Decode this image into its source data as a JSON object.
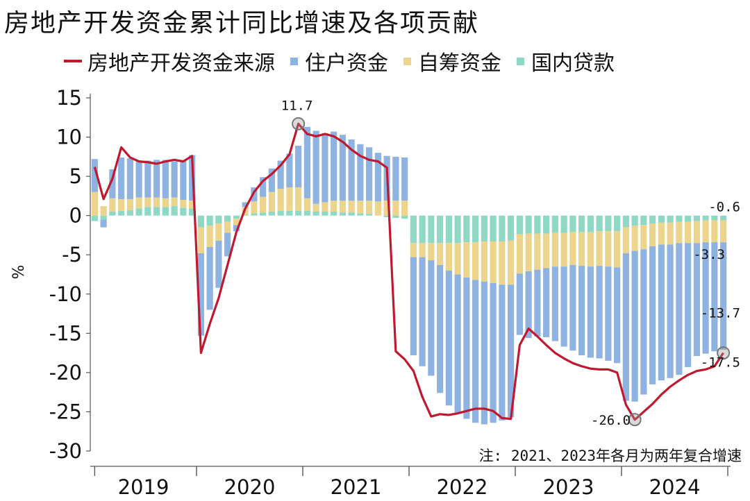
{
  "chart_data": {
    "type": "bar",
    "title": "房地产开发资金累计同比增速及各项贡献",
    "ylabel": "%",
    "ylim": [
      -30,
      15
    ],
    "yticks": [
      15,
      10,
      5,
      0,
      -5,
      -10,
      -15,
      -20,
      -25,
      -30
    ],
    "year_labels": [
      "2019",
      "2020",
      "2021",
      "2022",
      "2023",
      "2024"
    ],
    "note": "注: 2021、2023年各月为两年复合增速",
    "legend": [
      {
        "name": "房地产开发资金来源",
        "kind": "line",
        "color": "#c0182e"
      },
      {
        "name": "住户资金",
        "kind": "bar",
        "color": "#8fb3e0"
      },
      {
        "name": "自筹资金",
        "kind": "bar",
        "color": "#ecd48c"
      },
      {
        "name": "国内贷款",
        "kind": "bar",
        "color": "#8fd8c6"
      }
    ],
    "series": [
      {
        "name": "国内贷款",
        "values": [
          -0.7,
          -0.5,
          0.5,
          0.6,
          0.7,
          0.9,
          1.1,
          1.1,
          1.1,
          1.2,
          1.0,
          0.9,
          -1.5,
          -1.3,
          -1.0,
          -0.8,
          -0.4,
          0.1,
          0.3,
          0.4,
          0.5,
          0.6,
          0.6,
          0.6,
          0.6,
          0.5,
          0.5,
          0.5,
          0.4,
          0.4,
          0.3,
          0.2,
          0.0,
          -0.2,
          -0.3,
          -0.4,
          -3.5,
          -3.5,
          -3.5,
          -3.5,
          -3.5,
          -3.5,
          -3.4,
          -3.4,
          -3.3,
          -3.3,
          -3.3,
          -3.2,
          -2.4,
          -2.3,
          -2.3,
          -2.3,
          -2.2,
          -2.2,
          -2.1,
          -2.1,
          -2.1,
          -2.0,
          -2.0,
          -2.0,
          -1.5,
          -1.3,
          -1.2,
          -1.0,
          -0.9,
          -0.9,
          -0.8,
          -0.8,
          -0.7,
          -0.6,
          -0.6,
          -0.6
        ]
      },
      {
        "name": "自筹资金",
        "values": [
          3.0,
          1.2,
          1.7,
          1.5,
          1.4,
          1.4,
          1.2,
          1.2,
          1.1,
          1.1,
          1.0,
          1.0,
          -3.3,
          -2.7,
          -2.2,
          -1.4,
          -0.8,
          1.0,
          1.5,
          2.0,
          2.5,
          2.8,
          3.0,
          3.0,
          1.6,
          1.0,
          1.2,
          1.4,
          1.5,
          1.5,
          1.6,
          1.7,
          1.8,
          1.9,
          1.9,
          1.9,
          -1.8,
          -1.8,
          -2.2,
          -2.8,
          -3.5,
          -4.0,
          -4.5,
          -4.8,
          -5.1,
          -5.3,
          -5.5,
          -5.6,
          -5.0,
          -4.8,
          -4.6,
          -4.4,
          -4.3,
          -4.3,
          -4.2,
          -4.3,
          -4.4,
          -4.4,
          -4.5,
          -4.6,
          -3.3,
          -3.2,
          -3.1,
          -2.9,
          -2.8,
          -2.8,
          -2.7,
          -2.7,
          -2.8,
          -2.8,
          -2.8,
          -2.8
        ]
      },
      {
        "name": "住户资金",
        "values": [
          4.2,
          -1.0,
          3.7,
          5.3,
          5.2,
          4.6,
          4.7,
          4.8,
          4.9,
          4.6,
          5.0,
          5.8,
          -10.5,
          -8.0,
          -6.0,
          -3.0,
          -0.8,
          0.6,
          1.8,
          2.5,
          3.0,
          3.6,
          4.3,
          5.3,
          9.1,
          9.3,
          8.8,
          8.8,
          8.4,
          7.8,
          7.2,
          6.8,
          6.2,
          5.7,
          5.6,
          5.5,
          -12.5,
          -13.9,
          -14.7,
          -16.3,
          -17.2,
          -17.6,
          -18.0,
          -18.2,
          -18.2,
          -17.8,
          -17.3,
          -16.9,
          -7.8,
          -8.5,
          -8.5,
          -8.8,
          -9.5,
          -10.2,
          -10.9,
          -11.4,
          -11.6,
          -11.8,
          -12.0,
          -12.2,
          -18.8,
          -19.2,
          -18.5,
          -17.6,
          -17.3,
          -17.0,
          -16.8,
          -15.8,
          -14.4,
          -14.2,
          -13.9,
          -13.7
        ]
      },
      {
        "name": "房地产开发资金来源",
        "values": [
          6.2,
          2.1,
          4.7,
          8.7,
          7.4,
          6.9,
          6.8,
          6.6,
          6.9,
          7.1,
          6.9,
          7.6,
          -17.5,
          -13.8,
          -10.5,
          -6.3,
          -2.1,
          0.9,
          3.0,
          4.4,
          5.3,
          6.4,
          7.8,
          11.7,
          10.4,
          10.1,
          10.4,
          10.1,
          9.4,
          8.4,
          7.6,
          7.1,
          6.9,
          6.1,
          -17.3,
          -18.3,
          -19.8,
          -23.1,
          -25.6,
          -25.3,
          -25.4,
          -25.2,
          -24.9,
          -24.6,
          -24.6,
          -24.9,
          -25.8,
          -25.9,
          -16.5,
          -14.4,
          -15.4,
          -16.5,
          -17.5,
          -18.2,
          -18.8,
          -19.2,
          -19.5,
          -19.6,
          -19.6,
          -20.0,
          -24.1,
          -26.0,
          -25.0,
          -24.0,
          -22.8,
          -21.8,
          -21.0,
          -20.3,
          -19.8,
          -19.6,
          -19.2,
          -17.5
        ]
      }
    ],
    "annotations": [
      {
        "text": "11.7",
        "value": 11.7
      },
      {
        "text": "-0.6",
        "value": -0.6
      },
      {
        "text": "-3.3",
        "value": -3.3
      },
      {
        "text": "-13.7",
        "value": -13.7
      },
      {
        "text": "-17.5",
        "value": -17.5
      },
      {
        "text": "-26.0",
        "value": -26.0
      }
    ]
  }
}
